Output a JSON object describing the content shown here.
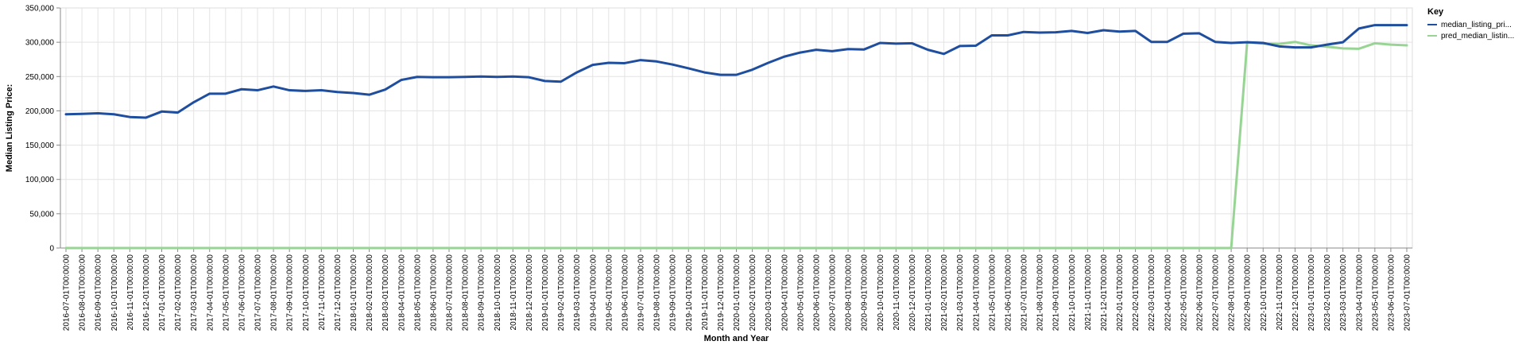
{
  "chart_data": {
    "type": "line",
    "xlabel": "Month and Year",
    "ylabel": "Median Listing Price:",
    "ylim": [
      0,
      350000
    ],
    "y_ticks": [
      0,
      50000,
      100000,
      150000,
      200000,
      250000,
      300000,
      350000
    ],
    "y_tick_labels": [
      "0",
      "50,000",
      "100,000",
      "150,000",
      "200,000",
      "250,000",
      "300,000",
      "350,000"
    ],
    "grid": true,
    "legend": {
      "title": "Key",
      "placement": "top-right",
      "entries": [
        "median_listing_pri...",
        "pred_median_listin..."
      ]
    },
    "colors": {
      "median": "#1f4e9e",
      "pred": "#98d594"
    },
    "x": [
      "2016-07-01T00:00:00",
      "2016-08-01T00:00:00",
      "2016-09-01T00:00:00",
      "2016-10-01T00:00:00",
      "2016-11-01T00:00:00",
      "2016-12-01T00:00:00",
      "2017-01-01T00:00:00",
      "2017-02-01T00:00:00",
      "2017-03-01T00:00:00",
      "2017-04-01T00:00:00",
      "2017-05-01T00:00:00",
      "2017-06-01T00:00:00",
      "2017-07-01T00:00:00",
      "2017-08-01T00:00:00",
      "2017-09-01T00:00:00",
      "2017-10-01T00:00:00",
      "2017-11-01T00:00:00",
      "2017-12-01T00:00:00",
      "2018-01-01T00:00:00",
      "2018-02-01T00:00:00",
      "2018-03-01T00:00:00",
      "2018-04-01T00:00:00",
      "2018-05-01T00:00:00",
      "2018-06-01T00:00:00",
      "2018-07-01T00:00:00",
      "2018-08-01T00:00:00",
      "2018-09-01T00:00:00",
      "2018-10-01T00:00:00",
      "2018-11-01T00:00:00",
      "2018-12-01T00:00:00",
      "2019-01-01T00:00:00",
      "2019-02-01T00:00:00",
      "2019-03-01T00:00:00",
      "2019-04-01T00:00:00",
      "2019-05-01T00:00:00",
      "2019-06-01T00:00:00",
      "2019-07-01T00:00:00",
      "2019-08-01T00:00:00",
      "2019-09-01T00:00:00",
      "2019-10-01T00:00:00",
      "2019-11-01T00:00:00",
      "2019-12-01T00:00:00",
      "2020-01-01T00:00:00",
      "2020-02-01T00:00:00",
      "2020-03-01T00:00:00",
      "2020-04-01T00:00:00",
      "2020-05-01T00:00:00",
      "2020-06-01T00:00:00",
      "2020-07-01T00:00:00",
      "2020-08-01T00:00:00",
      "2020-09-01T00:00:00",
      "2020-10-01T00:00:00",
      "2020-11-01T00:00:00",
      "2020-12-01T00:00:00",
      "2021-01-01T00:00:00",
      "2021-02-01T00:00:00",
      "2021-03-01T00:00:00",
      "2021-04-01T00:00:00",
      "2021-05-01T00:00:00",
      "2021-06-01T00:00:00",
      "2021-07-01T00:00:00",
      "2021-08-01T00:00:00",
      "2021-09-01T00:00:00",
      "2021-10-01T00:00:00",
      "2021-11-01T00:00:00",
      "2021-12-01T00:00:00",
      "2022-01-01T00:00:00",
      "2022-02-01T00:00:00",
      "2022-03-01T00:00:00",
      "2022-04-01T00:00:00",
      "2022-05-01T00:00:00",
      "2022-06-01T00:00:00",
      "2022-07-01T00:00:00",
      "2022-08-01T00:00:00",
      "2022-09-01T00:00:00",
      "2022-10-01T00:00:00",
      "2022-11-01T00:00:00",
      "2022-12-01T00:00:00",
      "2023-01-01T00:00:00",
      "2023-02-01T00:00:00",
      "2023-03-01T00:00:00",
      "2023-04-01T00:00:00",
      "2023-05-01T00:00:00",
      "2023-06-01T00:00:00",
      "2023-07-01T00:00:00"
    ],
    "series": [
      {
        "name": "median_listing_pri...",
        "values": [
          195000,
          195500,
          196500,
          195000,
          191000,
          190000,
          199000,
          197500,
          212500,
          225000,
          225000,
          231500,
          230000,
          235500,
          230000,
          229000,
          230000,
          227500,
          226000,
          223500,
          231000,
          245000,
          249500,
          249000,
          249000,
          249500,
          250000,
          249500,
          250000,
          249000,
          243500,
          242500,
          256000,
          267000,
          270000,
          269500,
          274000,
          272000,
          267500,
          262000,
          256000,
          252500,
          252500,
          260000,
          270000,
          279000,
          285000,
          289000,
          287000,
          290000,
          289500,
          299000,
          298000,
          298500,
          289000,
          283000,
          294500,
          295000,
          310000,
          310000,
          315000,
          314000,
          314500,
          316500,
          313500,
          317500,
          315500,
          316500,
          300500,
          300500,
          312500,
          313000,
          300500,
          299000,
          300000,
          299000,
          294000,
          292500,
          292500,
          296500,
          300000,
          320000,
          325000,
          325000,
          325000
        ]
      },
      {
        "name": "pred_median_listin...",
        "values": [
          0,
          0,
          0,
          0,
          0,
          0,
          0,
          0,
          0,
          0,
          0,
          0,
          0,
          0,
          0,
          0,
          0,
          0,
          0,
          0,
          0,
          0,
          0,
          0,
          0,
          0,
          0,
          0,
          0,
          0,
          0,
          0,
          0,
          0,
          0,
          0,
          0,
          0,
          0,
          0,
          0,
          0,
          0,
          0,
          0,
          0,
          0,
          0,
          0,
          0,
          0,
          0,
          0,
          0,
          0,
          0,
          0,
          0,
          0,
          0,
          0,
          0,
          0,
          0,
          0,
          0,
          0,
          0,
          0,
          0,
          0,
          0,
          0,
          0,
          300000,
          298000,
          297500,
          300500,
          295500,
          293500,
          291000,
          290500,
          298500,
          296500,
          295500
        ]
      }
    ]
  }
}
